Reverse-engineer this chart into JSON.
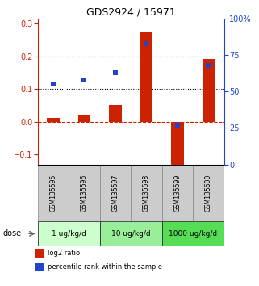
{
  "title": "GDS2924 / 15971",
  "samples": [
    "GSM135595",
    "GSM135596",
    "GSM135597",
    "GSM135598",
    "GSM135599",
    "GSM135600"
  ],
  "log2_ratio": [
    0.012,
    0.022,
    0.052,
    0.272,
    -0.13,
    0.193
  ],
  "percentile_rank": [
    55,
    58,
    63,
    83,
    27,
    68
  ],
  "bar_color": "#cc2200",
  "square_color": "#2244cc",
  "ylim_left": [
    -0.13,
    0.315
  ],
  "ylim_right": [
    0,
    100
  ],
  "yticks_left": [
    -0.1,
    0.0,
    0.1,
    0.2,
    0.3
  ],
  "yticks_right": [
    0,
    25,
    50,
    75,
    100
  ],
  "ytick_labels_right": [
    "0",
    "25",
    "50",
    "75",
    "100%"
  ],
  "hlines": [
    0.1,
    0.2
  ],
  "dose_groups": [
    {
      "label": "1 ug/kg/d",
      "samples": [
        0,
        1
      ],
      "color": "#ccffcc"
    },
    {
      "label": "10 ug/kg/d",
      "samples": [
        2,
        3
      ],
      "color": "#99ee99"
    },
    {
      "label": "1000 ug/kg/d",
      "samples": [
        4,
        5
      ],
      "color": "#55dd55"
    }
  ],
  "dose_label": "dose",
  "legend_red": "log2 ratio",
  "legend_blue": "percentile rank within the sample",
  "bar_width": 0.4,
  "square_size": 22
}
